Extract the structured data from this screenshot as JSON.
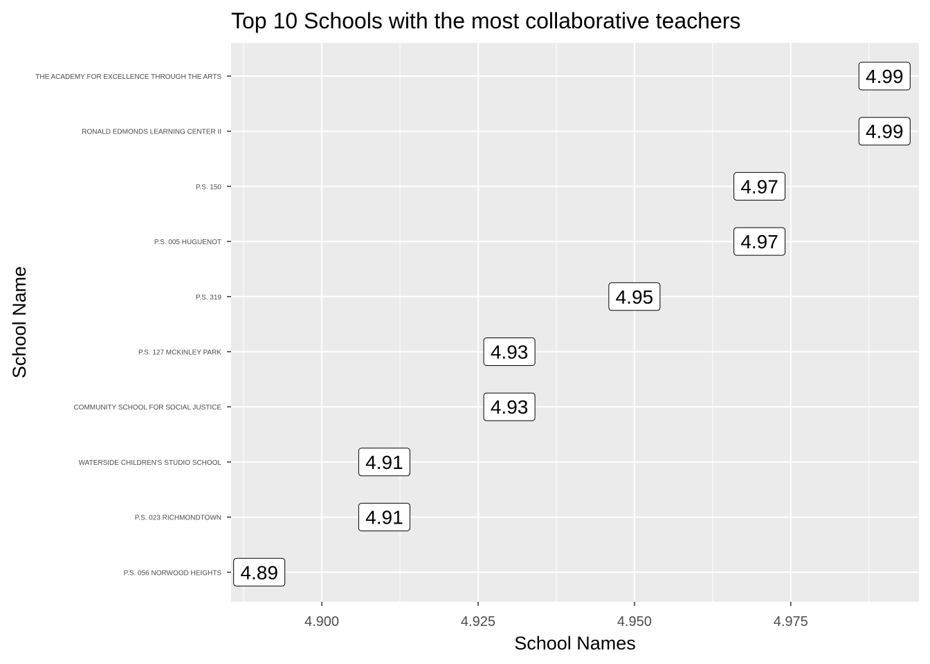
{
  "chart_data": {
    "type": "scatter",
    "title": "Top 10 Schools with the most collaborative teachers",
    "xlabel": "School Names",
    "ylabel": "School Name",
    "xlim": [
      4.8855,
      4.9955
    ],
    "x_ticks": [
      4.9,
      4.925,
      4.95,
      4.975
    ],
    "x_tick_labels": [
      "4.900",
      "4.925",
      "4.950",
      "4.975"
    ],
    "grid": true,
    "categories": [
      "THE ACADEMY FOR EXCELLENCE THROUGH THE ARTS",
      "RONALD EDMONDS LEARNING CENTER II",
      "P.S. 150",
      "P.S. 005 HUGUENOT",
      "P.S. 319",
      "P.S. 127 MCKINLEY PARK",
      "COMMUNITY SCHOOL FOR SOCIAL JUSTICE",
      "WATERSIDE CHILDREN'S STUDIO SCHOOL",
      "P.S. 023 RICHMONDTOWN",
      "P.S. 056 NORWOOD HEIGHTS"
    ],
    "values": [
      4.99,
      4.99,
      4.97,
      4.97,
      4.95,
      4.93,
      4.93,
      4.91,
      4.91,
      4.89
    ],
    "value_labels": [
      "4.99",
      "4.99",
      "4.97",
      "4.97",
      "4.95",
      "4.93",
      "4.93",
      "4.91",
      "4.91",
      "4.89"
    ],
    "colors": {
      "panel": "#ebebeb",
      "grid_major": "#ffffff",
      "label_fill": "#ffffff",
      "label_border": "#000000",
      "tick_text": "#4d4d4d"
    }
  }
}
